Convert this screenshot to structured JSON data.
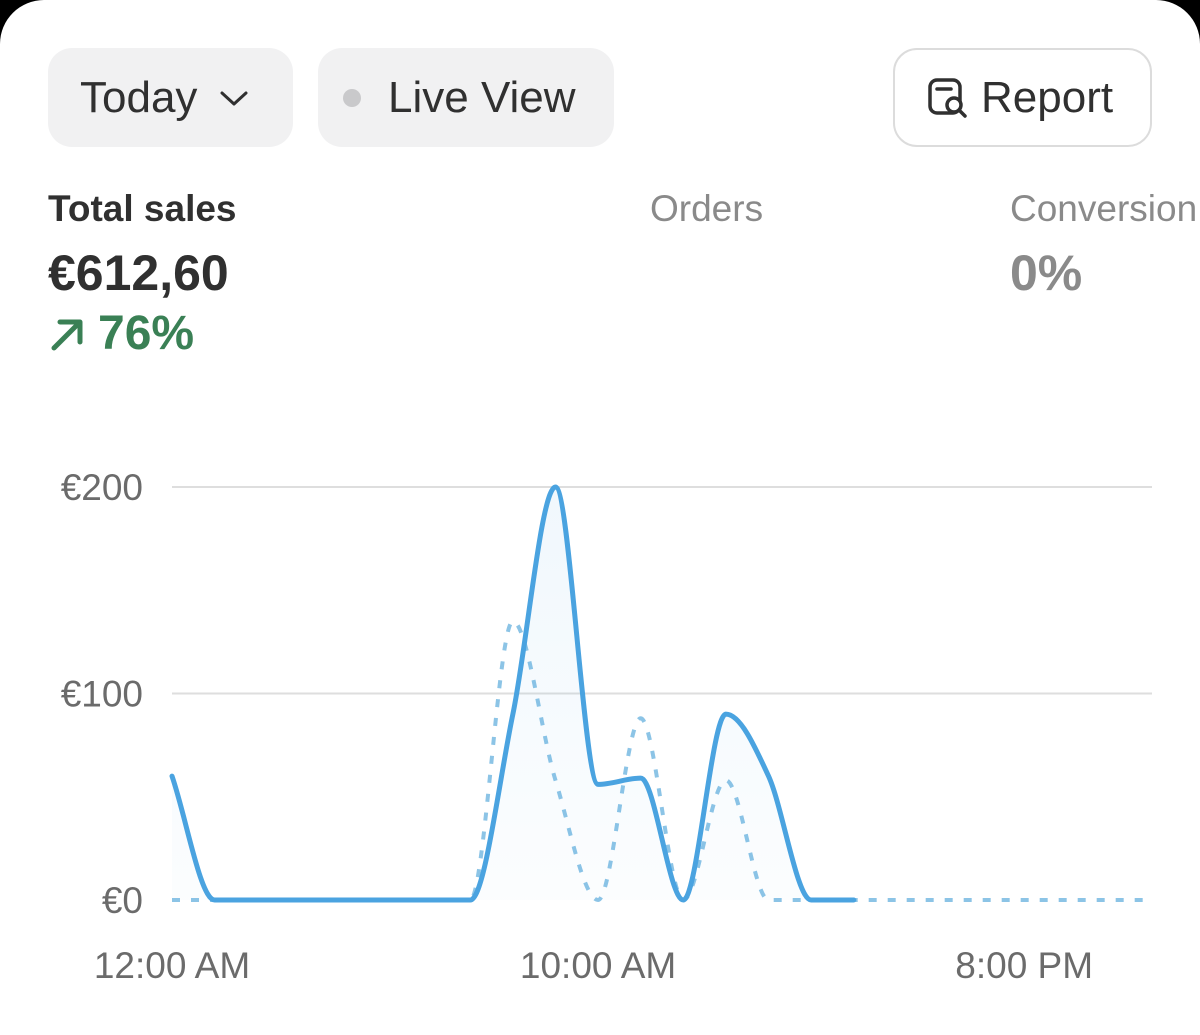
{
  "toolbar": {
    "period": "Today",
    "live": "Live View",
    "report": "Report"
  },
  "metrics": [
    {
      "label": "Total sales",
      "value": "€612,60",
      "change": "76%"
    },
    {
      "label": "Orders"
    },
    {
      "label": "Conversion",
      "value": "0%"
    }
  ],
  "chart_data": {
    "type": "line",
    "categories": [
      "12:00 AM",
      null,
      null,
      null,
      null,
      null,
      null,
      null,
      null,
      null,
      "10:00 AM",
      null,
      null,
      null,
      null,
      null,
      null,
      null,
      null,
      null,
      "8:00 PM",
      null,
      null,
      null
    ],
    "series": [
      {
        "color": "#4aa3e0",
        "style": "solid",
        "fill": true,
        "values": [
          60,
          0,
          0,
          0,
          0,
          0,
          0,
          0,
          90,
          200,
          56,
          59,
          0,
          90,
          60,
          0,
          0,
          null,
          null,
          null,
          null,
          null,
          null,
          null
        ]
      },
      {
        "color": "#8cc4e6",
        "style": "dashed",
        "fill": false,
        "values": [
          0,
          0,
          0,
          0,
          0,
          0,
          0,
          0,
          135,
          58,
          0,
          88,
          0,
          58,
          0,
          0,
          0,
          0,
          0,
          0,
          0,
          0,
          0,
          0
        ]
      }
    ],
    "ylim": [
      0,
      200
    ],
    "yticks": [
      {
        "value": 0,
        "label": "€0"
      },
      {
        "value": 100,
        "label": "€100"
      },
      {
        "value": 200,
        "label": "€200"
      }
    ],
    "grid": true
  }
}
